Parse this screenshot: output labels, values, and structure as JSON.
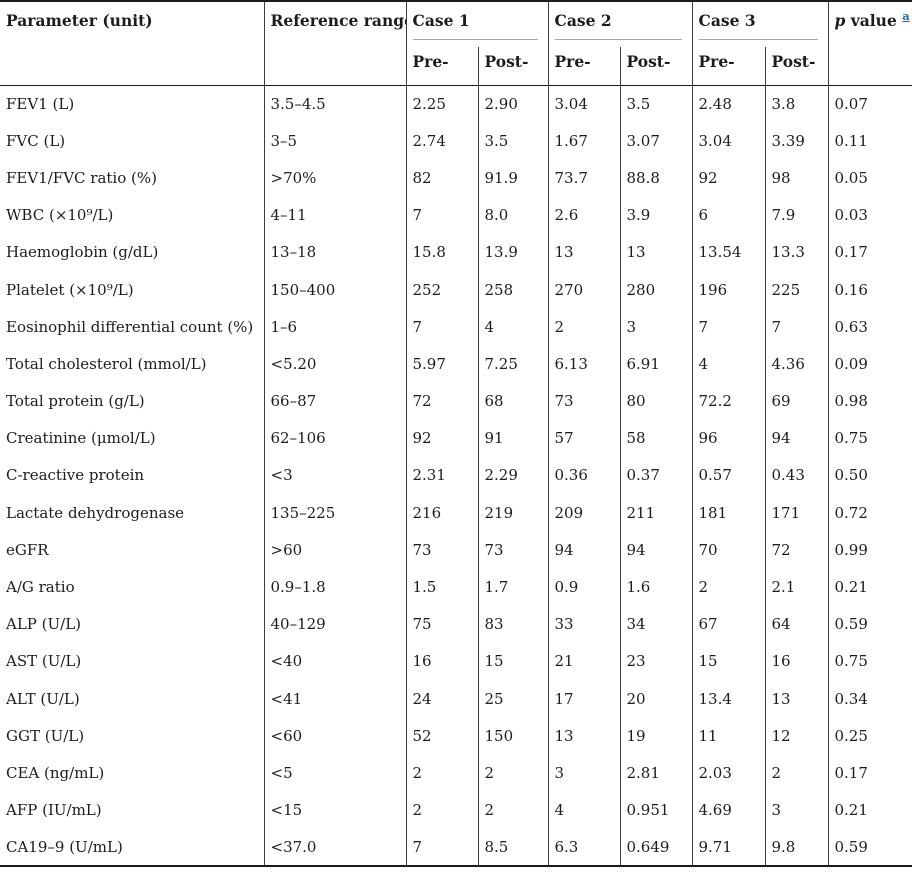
{
  "header": {
    "parameter": "Parameter (unit)",
    "reference": "Reference range",
    "cases": [
      "Case 1",
      "Case 2",
      "Case 3"
    ],
    "subheaders": [
      "Pre-",
      "Post-",
      "Pre-",
      "Post-",
      "Pre-",
      "Post-"
    ],
    "p_italic": "p",
    "p_rest": " value",
    "footnote": "a"
  },
  "colors": {
    "text": "#1c1c1c",
    "border": "#1a1a1a",
    "case_underline": "#a8a8a8",
    "footnote_link": "#2767a6"
  },
  "rows": [
    {
      "parameter": "FEV1 (L)",
      "reference": "3.5–4.5",
      "values": [
        "2.25",
        "2.90",
        "3.04",
        "3.5",
        "2.48",
        "3.8"
      ],
      "p": "0.07"
    },
    {
      "parameter": "FVC (L)",
      "reference": "3–5",
      "values": [
        "2.74",
        "3.5",
        "1.67",
        "3.07",
        "3.04",
        "3.39"
      ],
      "p": "0.11"
    },
    {
      "parameter": "FEV1/FVC ratio (%)",
      "reference": ">70%",
      "values": [
        "82",
        "91.9",
        "73.7",
        "88.8",
        "92",
        "98"
      ],
      "p": "0.05"
    },
    {
      "parameter": "WBC (×10⁹/L)",
      "reference": "4–11",
      "values": [
        "7",
        "8.0",
        "2.6",
        "3.9",
        "6",
        "7.9"
      ],
      "p": "0.03"
    },
    {
      "parameter": "Haemoglobin (g/dL)",
      "reference": "13–18",
      "values": [
        "15.8",
        "13.9",
        "13",
        "13",
        "13.54",
        "13.3"
      ],
      "p": "0.17"
    },
    {
      "parameter": "Platelet (×10⁹/L)",
      "reference": "150–400",
      "values": [
        "252",
        "258",
        "270",
        "280",
        "196",
        "225"
      ],
      "p": "0.16"
    },
    {
      "parameter": "Eosinophil differential count (%)",
      "reference": "1–6",
      "values": [
        "7",
        "4",
        "2",
        "3",
        "7",
        "7"
      ],
      "p": "0.63"
    },
    {
      "parameter": "Total cholesterol (mmol/L)",
      "reference": "<5.20",
      "values": [
        "5.97",
        "7.25",
        "6.13",
        "6.91",
        "4",
        "4.36"
      ],
      "p": "0.09"
    },
    {
      "parameter": "Total protein (g/L)",
      "reference": "66–87",
      "values": [
        "72",
        "68",
        "73",
        "80",
        "72.2",
        "69"
      ],
      "p": "0.98"
    },
    {
      "parameter": "Creatinine (μmol/L)",
      "reference": "62–106",
      "values": [
        "92",
        "91",
        "57",
        "58",
        "96",
        "94"
      ],
      "p": "0.75"
    },
    {
      "parameter": "C-reactive protein",
      "reference": "<3",
      "values": [
        "2.31",
        "2.29",
        "0.36",
        "0.37",
        "0.57",
        "0.43"
      ],
      "p": "0.50"
    },
    {
      "parameter": "Lactate dehydrogenase",
      "reference": "135–225",
      "values": [
        "216",
        "219",
        "209",
        "211",
        "181",
        "171"
      ],
      "p": "0.72"
    },
    {
      "parameter": "eGFR",
      "reference": ">60",
      "values": [
        "73",
        "73",
        "94",
        "94",
        "70",
        "72"
      ],
      "p": "0.99"
    },
    {
      "parameter": "A/G ratio",
      "reference": "0.9–1.8",
      "values": [
        "1.5",
        "1.7",
        "0.9",
        "1.6",
        "2",
        "2.1"
      ],
      "p": "0.21"
    },
    {
      "parameter": "ALP (U/L)",
      "reference": "40–129",
      "values": [
        "75",
        "83",
        "33",
        "34",
        "67",
        "64"
      ],
      "p": "0.59"
    },
    {
      "parameter": "AST (U/L)",
      "reference": "<40",
      "values": [
        "16",
        "15",
        "21",
        "23",
        "15",
        "16"
      ],
      "p": "0.75"
    },
    {
      "parameter": "ALT (U/L)",
      "reference": "<41",
      "values": [
        "24",
        "25",
        "17",
        "20",
        "13.4",
        "13"
      ],
      "p": "0.34"
    },
    {
      "parameter": "GGT (U/L)",
      "reference": "<60",
      "values": [
        "52",
        "150",
        "13",
        "19",
        "11",
        "12"
      ],
      "p": "0.25"
    },
    {
      "parameter": "CEA (ng/mL)",
      "reference": "<5",
      "values": [
        "2",
        "2",
        "3",
        "2.81",
        "2.03",
        "2"
      ],
      "p": "0.17"
    },
    {
      "parameter": "AFP (IU/mL)",
      "reference": "<15",
      "values": [
        "2",
        "2",
        "4",
        "0.951",
        "4.69",
        "3"
      ],
      "p": "0.21"
    },
    {
      "parameter": "CA19–9 (U/mL)",
      "reference": "<37.0",
      "values": [
        "7",
        "8.5",
        "6.3",
        "0.649",
        "9.71",
        "9.8"
      ],
      "p": "0.59"
    }
  ]
}
